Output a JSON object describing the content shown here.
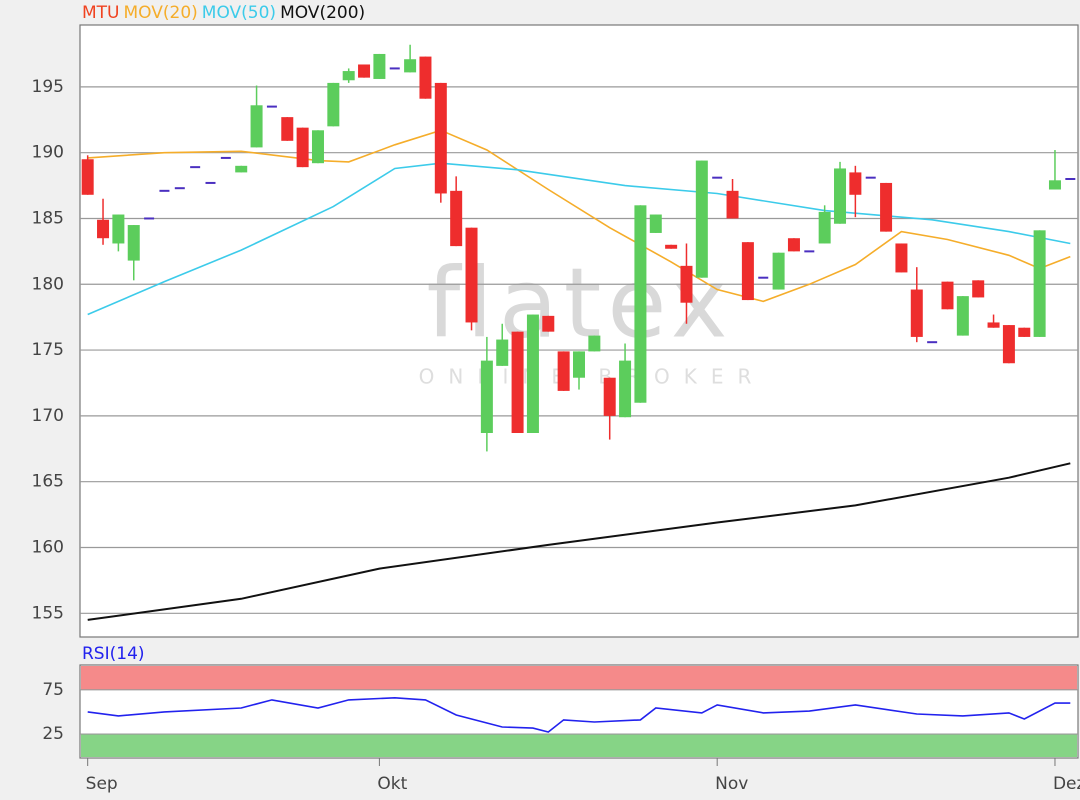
{
  "chart_data": [
    {
      "type": "candlestick",
      "watermark": [
        "flatex",
        "ONLINE BROKER"
      ],
      "categories": [
        "Sep",
        null,
        null,
        null,
        null,
        null,
        null,
        null,
        null,
        null,
        null,
        null,
        null,
        null,
        null,
        null,
        null,
        null,
        null,
        "Okt",
        null,
        null,
        null,
        null,
        null,
        null,
        null,
        null,
        null,
        null,
        null,
        null,
        null,
        null,
        null,
        null,
        null,
        null,
        null,
        null,
        null,
        "Nov",
        null,
        null,
        null,
        null,
        null,
        null,
        null,
        null,
        null,
        null,
        null,
        null,
        null,
        null,
        null,
        null,
        null,
        null,
        null,
        null,
        null,
        "Dez",
        null
      ],
      "ylim": [
        153.2,
        199.7
      ],
      "yticks": [
        155,
        160,
        165,
        170,
        175,
        180,
        185,
        190,
        195
      ],
      "grid": true,
      "candles": {
        "name": "MTU",
        "color": "#f0421f",
        "up_color": "#5ccd5c",
        "down_color": "#ee2d2d",
        "doji_color": "#4a2fc0",
        "open": [
          189.5,
          184.9,
          183.1,
          181.8,
          185,
          187.1,
          187.3,
          188.9,
          187.7,
          189.6,
          188.5,
          190.4,
          193.5,
          192.7,
          191.9,
          189.2,
          192.0,
          195.5,
          196.7,
          195.6,
          196.4,
          196.1,
          197.3,
          195.3,
          187.1,
          184.3,
          168.7,
          173.8,
          176.4,
          168.7,
          177.6,
          174.9,
          172.9,
          174.9,
          172.9,
          169.9,
          171.0,
          183.9,
          183.0,
          181.4,
          180.5,
          188.1,
          187.1,
          183.2,
          180.5,
          179.6,
          183.5,
          182.5,
          183.1,
          184.6,
          188.5,
          188.1,
          187.7,
          183.1,
          179.6,
          175.6,
          180.2,
          176.1,
          180.3,
          177.1,
          176.9,
          176.7,
          176.0,
          187.2,
          188.0
        ],
        "high": [
          189.8,
          186.5,
          185.3,
          184.5,
          185,
          187.1,
          187.3,
          188.9,
          187.7,
          189.6,
          189.0,
          195.1,
          193.5,
          192.7,
          191.9,
          191.7,
          195.3,
          196.4,
          196.7,
          197.5,
          196.4,
          198.2,
          197.3,
          195.3,
          188.2,
          184.3,
          176.0,
          177.0,
          176.4,
          177.7,
          177.6,
          174.9,
          174.9,
          176.1,
          172.9,
          175.5,
          186.0,
          185.3,
          183.0,
          183.1,
          189.4,
          188.1,
          188.0,
          183.2,
          180.5,
          182.4,
          183.5,
          182.5,
          186.0,
          189.3,
          189.0,
          188.1,
          187.7,
          183.1,
          181.3,
          175.6,
          180.2,
          179.1,
          180.3,
          177.7,
          176.9,
          176.7,
          184.1,
          190.2,
          188.0
        ],
        "low": [
          186.8,
          183.0,
          182.5,
          180.3,
          185,
          187.1,
          187.3,
          188.9,
          187.7,
          189.6,
          188.5,
          190.4,
          193.5,
          190.9,
          188.9,
          189.2,
          192.0,
          195.3,
          195.7,
          195.6,
          196.4,
          196.1,
          194.1,
          186.2,
          182.9,
          176.5,
          167.3,
          173.8,
          168.7,
          168.7,
          176.4,
          171.9,
          172.0,
          174.9,
          168.2,
          169.9,
          171.0,
          183.9,
          182.7,
          177.0,
          180.5,
          188.1,
          185.0,
          178.8,
          180.5,
          179.6,
          182.5,
          182.5,
          183.1,
          184.6,
          185.1,
          188.1,
          184.0,
          180.9,
          175.6,
          175.6,
          178.1,
          176.1,
          179.0,
          176.7,
          174.0,
          176.0,
          176.0,
          187.2,
          188.0
        ],
        "close": [
          186.8,
          183.5,
          185.3,
          184.5,
          185,
          187.1,
          187.3,
          188.9,
          187.7,
          189.6,
          189.0,
          193.6,
          193.5,
          190.9,
          188.9,
          191.7,
          195.3,
          196.2,
          195.7,
          197.5,
          196.4,
          197.1,
          194.1,
          186.9,
          182.9,
          177.1,
          174.2,
          175.8,
          168.7,
          177.7,
          176.4,
          171.9,
          174.9,
          176.1,
          170.0,
          174.2,
          186.0,
          185.3,
          182.7,
          178.6,
          189.4,
          188.1,
          185.0,
          178.8,
          180.5,
          182.4,
          182.5,
          182.5,
          185.5,
          188.8,
          186.8,
          188.1,
          184.0,
          180.9,
          176.0,
          175.6,
          178.1,
          179.1,
          179.0,
          176.7,
          174.0,
          176.0,
          184.1,
          187.9,
          188.0
        ]
      },
      "series": [
        {
          "name": "MOV(20)",
          "color": "#f5ad2a",
          "x": [
            0,
            5,
            10,
            15,
            17,
            20,
            23,
            26,
            30,
            34,
            38,
            41,
            44,
            47,
            50,
            53,
            56,
            60,
            62,
            64
          ],
          "values": [
            189.6,
            190.0,
            190.1,
            189.4,
            189.3,
            190.6,
            191.7,
            190.2,
            187.2,
            184.3,
            181.7,
            179.6,
            178.7,
            180.0,
            181.5,
            184.0,
            183.4,
            182.2,
            181.2,
            182.1
          ]
        },
        {
          "name": "MOV(50)",
          "color": "#3ccbea",
          "x": [
            0,
            5,
            10,
            16,
            20,
            23,
            28,
            35,
            41,
            48,
            55,
            60,
            64
          ],
          "values": [
            177.7,
            180.2,
            182.6,
            185.9,
            188.8,
            189.2,
            188.7,
            187.5,
            186.9,
            185.6,
            184.9,
            184.0,
            183.1
          ]
        },
        {
          "name": "MOV(200)",
          "color": "#111111",
          "x": [
            0,
            10,
            19,
            30,
            41,
            50,
            60,
            64
          ],
          "values": [
            154.5,
            156.1,
            158.4,
            160.2,
            161.9,
            163.2,
            165.3,
            166.4
          ]
        }
      ]
    },
    {
      "type": "line",
      "ylim": [
        -2,
        103
      ],
      "yticks": [
        25,
        75
      ],
      "overbought_color": "#f58a8a",
      "oversold_color": "#86d486",
      "series": [
        {
          "name": "RSI(14)",
          "color": "#2222ee",
          "x": [
            0,
            2,
            5,
            10,
            12,
            15,
            17,
            20,
            22,
            24,
            26,
            27,
            29,
            30,
            31,
            33,
            36,
            37,
            40,
            41,
            44,
            47,
            50,
            54,
            57,
            60,
            61,
            63,
            64
          ],
          "values": [
            50,
            45.5,
            50,
            54.5,
            63.6,
            54.5,
            63.6,
            66,
            63.6,
            46.6,
            37.5,
            33,
            31.8,
            27.3,
            41,
            38.6,
            41,
            54.5,
            48.9,
            58,
            48.9,
            51,
            58,
            47.7,
            45.5,
            48.9,
            42,
            60,
            60
          ]
        }
      ]
    }
  ]
}
